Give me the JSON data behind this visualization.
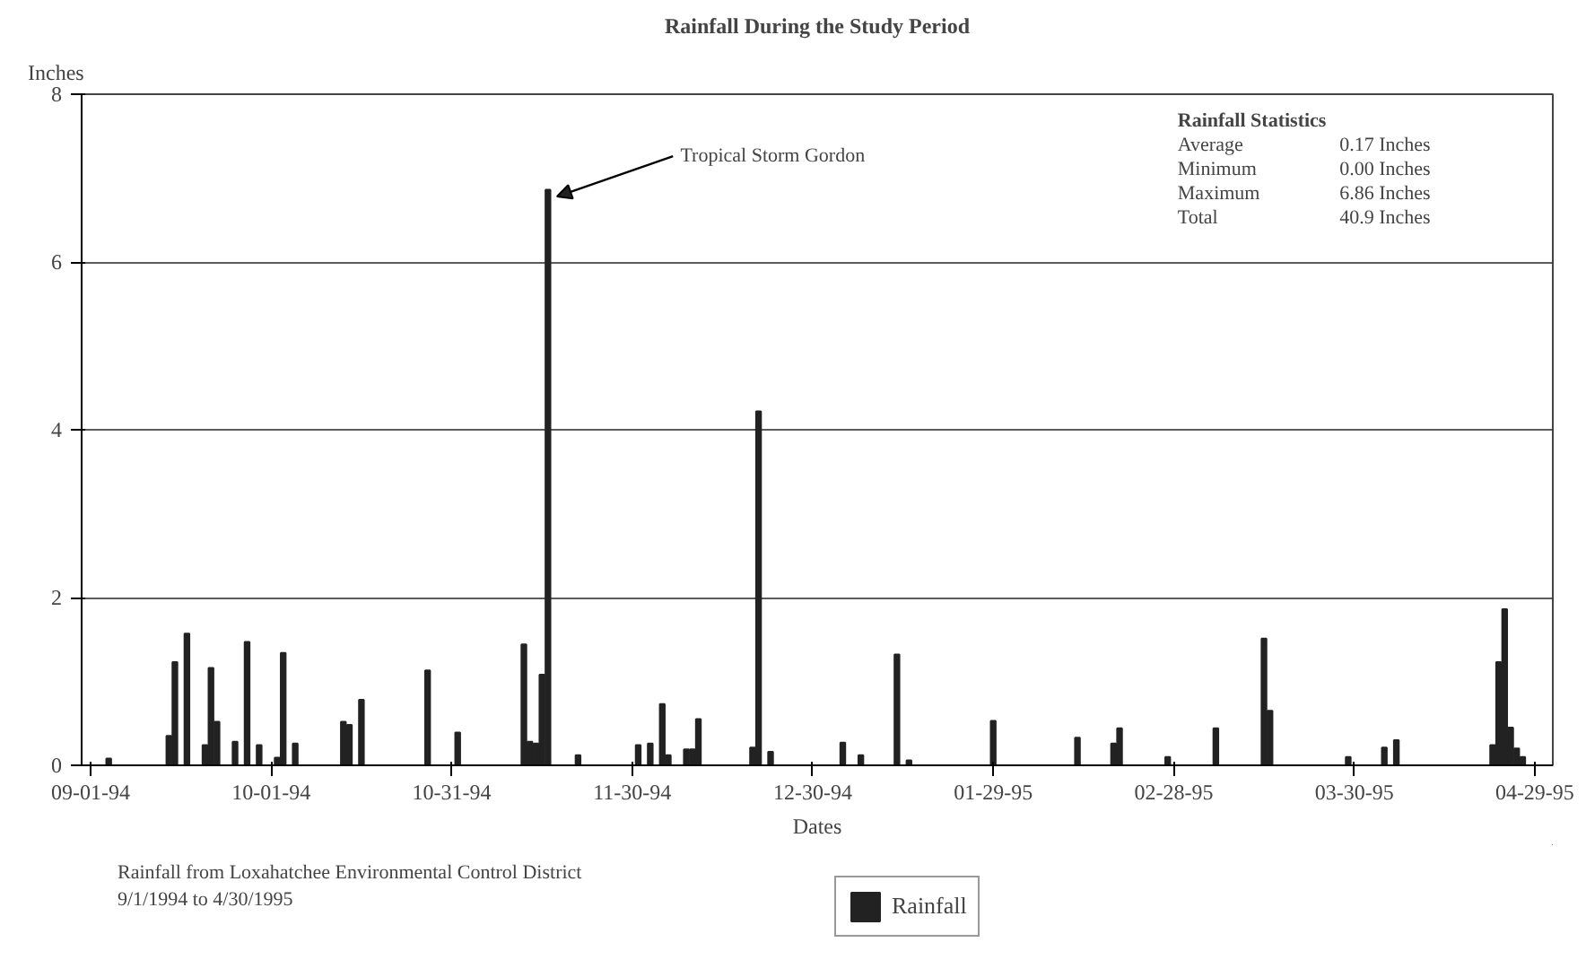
{
  "chart_data": {
    "type": "bar",
    "title": "Rainfall During the Study Period",
    "xlabel": "Dates",
    "ylabel": "Inches",
    "x": [
      "1994-09-04",
      "1994-09-14",
      "1994-09-15",
      "1994-09-17",
      "1994-09-20",
      "1994-09-21",
      "1994-09-22",
      "1994-09-25",
      "1994-09-27",
      "1994-09-29",
      "1994-10-02",
      "1994-10-03",
      "1994-10-05",
      "1994-10-13",
      "1994-10-14",
      "1994-10-16",
      "1994-10-27",
      "1994-11-01",
      "1994-11-12",
      "1994-11-13",
      "1994-11-14",
      "1994-11-15",
      "1994-11-16",
      "1994-11-21",
      "1994-12-01",
      "1994-12-03",
      "1994-12-05",
      "1994-12-06",
      "1994-12-09",
      "1994-12-10",
      "1994-12-11",
      "1994-12-20",
      "1994-12-21",
      "1994-12-23",
      "1995-01-04",
      "1995-01-07",
      "1995-01-13",
      "1995-01-15",
      "1995-01-29",
      "1995-02-12",
      "1995-02-18",
      "1995-02-19",
      "1995-02-27",
      "1995-03-07",
      "1995-03-15",
      "1995-03-16",
      "1995-03-29",
      "1995-04-04",
      "1995-04-06",
      "1995-04-22",
      "1995-04-23",
      "1995-04-24",
      "1995-04-25",
      "1995-04-26",
      "1995-04-27"
    ],
    "series": [
      {
        "name": "Rainfall",
        "color": "#222222",
        "values": [
          0.08,
          0.35,
          1.23,
          1.57,
          0.24,
          1.16,
          0.52,
          0.28,
          1.47,
          0.24,
          0.09,
          1.34,
          0.26,
          0.52,
          0.48,
          0.78,
          1.13,
          0.39,
          1.44,
          0.28,
          0.26,
          1.08,
          6.86,
          0.12,
          0.24,
          0.26,
          0.73,
          0.12,
          0.19,
          0.19,
          0.55,
          0.21,
          4.22,
          0.16,
          0.27,
          0.12,
          1.32,
          0.06,
          0.53,
          0.33,
          0.26,
          0.44,
          0.1,
          0.44,
          1.51,
          0.65,
          0.1,
          0.21,
          0.3,
          0.24,
          1.23,
          1.86,
          0.45,
          0.2,
          0.1
        ]
      }
    ],
    "xlim": [
      "1994-08-30T12:00",
      "1995-05-02"
    ],
    "xticks": [
      {
        "value": "1994-09-01",
        "label": "09-01-94"
      },
      {
        "value": "1994-10-01",
        "label": "10-01-94"
      },
      {
        "value": "1994-10-31",
        "label": "10-31-94"
      },
      {
        "value": "1994-11-30",
        "label": "11-30-94"
      },
      {
        "value": "1994-12-30",
        "label": "12-30-94"
      },
      {
        "value": "1995-01-29",
        "label": "01-29-95"
      },
      {
        "value": "1995-02-28",
        "label": "02-28-95"
      },
      {
        "value": "1995-03-30",
        "label": "03-30-95"
      },
      {
        "value": "1995-04-29",
        "label": "04-29-95"
      }
    ],
    "ylim": [
      0,
      8
    ],
    "yticks": [
      0,
      2,
      4,
      6,
      8
    ],
    "grid": "y",
    "legend": "bottom",
    "annotations": [
      {
        "text": "Tropical Storm Gordon",
        "x": "1994-11-16",
        "y": 6.86
      },
      "Rainfall Statistics",
      "Average",
      "0.17 Inches",
      "Minimum",
      "0.00 Inches",
      "Maximum",
      "6.86 Inches",
      "Total",
      "40.9 Inches",
      "Rainfall from Loxahatchee Environmental Control District",
      "9/1/1994 to 4/30/1995"
    ]
  }
}
